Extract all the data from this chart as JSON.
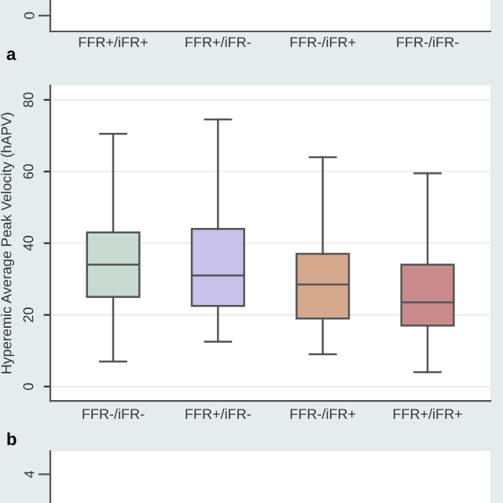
{
  "chart_data": [
    {
      "type": "other",
      "categories": [
        "FFR+/iFR+",
        "FFR+/iFR-",
        "FFR-/iFR+",
        "FFR-/iFR-"
      ],
      "annotations": [
        "0",
        "a"
      ]
    },
    {
      "type": "box",
      "ylabel": "Hyperemic Average Peak Velocity (hAPV)",
      "categories": [
        "FFR-/iFR-",
        "FFR+/iFR-",
        "FFR-/iFR+",
        "FFR+/iFR+"
      ],
      "boxes": [
        {
          "low": 7,
          "q1": 25,
          "median": 34,
          "q3": 43,
          "high": 70.5
        },
        {
          "low": 12.5,
          "q1": 22.5,
          "median": 31,
          "q3": 44,
          "high": 74.5
        },
        {
          "low": 9,
          "q1": 19,
          "median": 28.5,
          "q3": 37,
          "high": 64
        },
        {
          "low": 4,
          "q1": 17,
          "median": 23.5,
          "q3": 34,
          "high": 59.5
        }
      ],
      "colors": [
        "#c9dad2",
        "#c9c2ea",
        "#d6a88e",
        "#c98b8b"
      ],
      "ylim": [
        -4,
        84
      ],
      "yticks": [
        0,
        20,
        40,
        60,
        80
      ],
      "grid": "y",
      "annotations": [
        "b"
      ]
    },
    {
      "type": "other",
      "annotations": [
        "4"
      ]
    }
  ]
}
